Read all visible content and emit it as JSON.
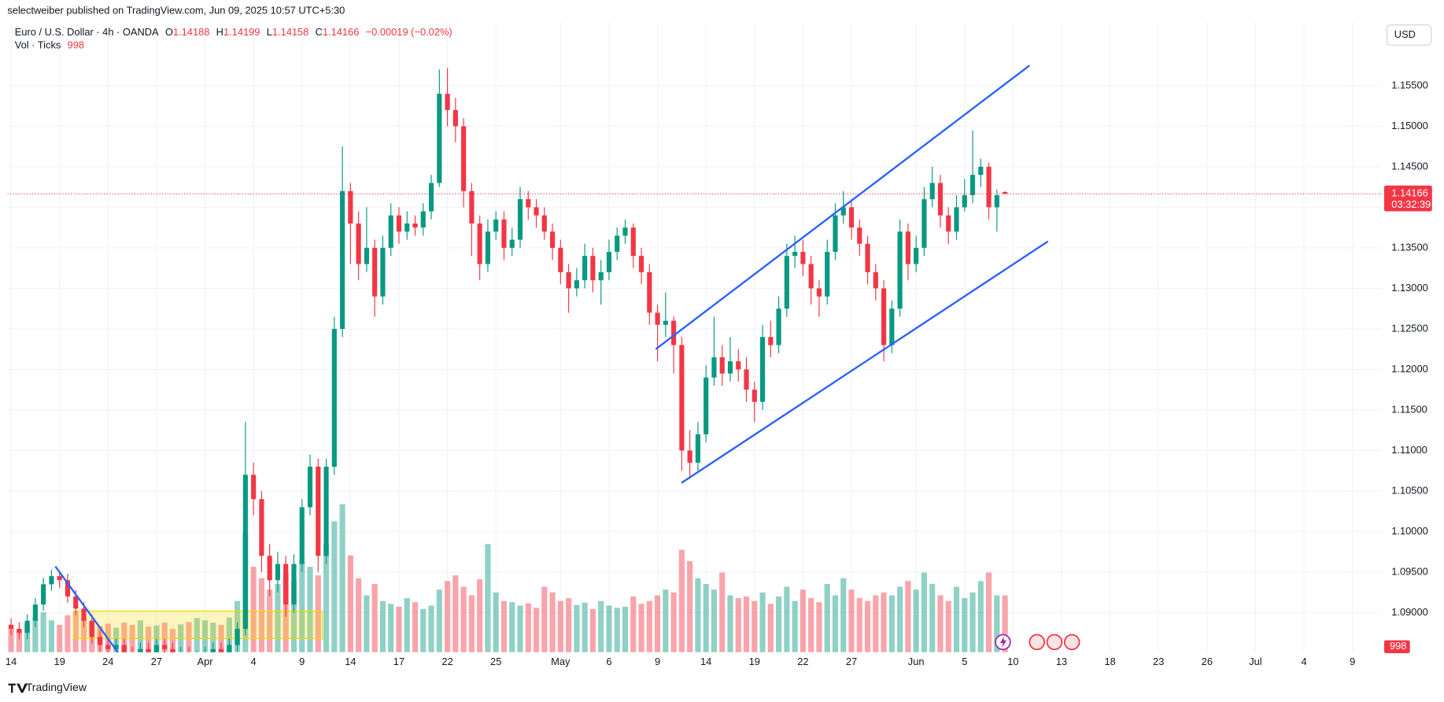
{
  "header": {
    "published": "selectweiber published on TradingView.com, Jun 09, 2025 10:57 UTC+5:30",
    "symbol": "Euro / U.S. Dollar · 4h · OANDA",
    "ohlc_labels": [
      "O",
      "H",
      "L",
      "C"
    ],
    "change": "−0.00019 (−0.02%)",
    "vol_label": "Vol · Ticks",
    "countdown": "03:32:39",
    "currency": "USD",
    "brand": "TradingView"
  },
  "chart_data": {
    "type": "candlestick",
    "up_color": "#089981",
    "down_color": "#f23645",
    "line_color": "#2962ff",
    "zone_color": "#f5d800",
    "xlim": [
      -0.23,
      84.79
    ],
    "ylim": [
      1.08511,
      1.16239
    ],
    "volume_lim": [
      0,
      11000
    ],
    "xticks": [
      {
        "value": 0,
        "label": "14"
      },
      {
        "value": 3,
        "label": "19"
      },
      {
        "value": 6,
        "label": "24"
      },
      {
        "value": 9,
        "label": "27"
      },
      {
        "value": 12,
        "label": "Apr"
      },
      {
        "value": 15,
        "label": "4"
      },
      {
        "value": 18,
        "label": "9"
      },
      {
        "value": 21,
        "label": "14"
      },
      {
        "value": 24,
        "label": "17"
      },
      {
        "value": 27,
        "label": "22"
      },
      {
        "value": 30,
        "label": "25"
      },
      {
        "value": 34,
        "label": "May"
      },
      {
        "value": 37,
        "label": "6"
      },
      {
        "value": 40,
        "label": "9"
      },
      {
        "value": 43,
        "label": "14"
      },
      {
        "value": 46,
        "label": "19"
      },
      {
        "value": 49,
        "label": "22"
      },
      {
        "value": 52,
        "label": "27"
      },
      {
        "value": 56,
        "label": "Jun"
      },
      {
        "value": 59,
        "label": "5"
      },
      {
        "value": 62,
        "label": "10"
      },
      {
        "value": 65,
        "label": "13"
      },
      {
        "value": 68,
        "label": "18"
      },
      {
        "value": 71,
        "label": "23"
      },
      {
        "value": 74,
        "label": "26"
      },
      {
        "value": 77,
        "label": "Jul"
      },
      {
        "value": 80,
        "label": "4"
      },
      {
        "value": 83,
        "label": "9"
      }
    ],
    "yticks": [
      {
        "value": 1.09,
        "label": "1.09000"
      },
      {
        "value": 1.095,
        "label": "1.09500"
      },
      {
        "value": 1.1,
        "label": "1.10000"
      },
      {
        "value": 1.105,
        "label": "1.10500"
      },
      {
        "value": 1.11,
        "label": "1.11000"
      },
      {
        "value": 1.115,
        "label": "1.11500"
      },
      {
        "value": 1.12,
        "label": "1.12000"
      },
      {
        "value": 1.125,
        "label": "1.12500"
      },
      {
        "value": 1.13,
        "label": "1.13000"
      },
      {
        "value": 1.135,
        "label": "1.13500"
      },
      {
        "value": 1.14,
        "label": "1.14000"
      },
      {
        "value": 1.145,
        "label": "1.14500"
      },
      {
        "value": 1.15,
        "label": "1.15000"
      },
      {
        "value": 1.155,
        "label": "1.15500"
      }
    ],
    "x": [
      0,
      0.5,
      1,
      1.5,
      2,
      2.5,
      3,
      3.5,
      4,
      4.5,
      5,
      5.5,
      6,
      6.5,
      7,
      7.5,
      8,
      8.5,
      9,
      9.5,
      10,
      10.5,
      11,
      11.5,
      12,
      12.5,
      13,
      13.5,
      14,
      14.5,
      15,
      15.5,
      16,
      16.5,
      17,
      17.5,
      18,
      18.5,
      19,
      19.5,
      20,
      20.5,
      21,
      21.5,
      22,
      22.5,
      23,
      23.5,
      24,
      24.5,
      25,
      25.5,
      26,
      26.5,
      27,
      27.5,
      28,
      28.5,
      29,
      29.5,
      30,
      30.5,
      31,
      31.5,
      32,
      32.5,
      33,
      33.5,
      34,
      34.5,
      35,
      35.5,
      36,
      36.5,
      37,
      37.5,
      38,
      38.5,
      39,
      39.5,
      40,
      40.5,
      41,
      41.5,
      42,
      42.5,
      43,
      43.5,
      44,
      44.5,
      45,
      45.5,
      46,
      46.5,
      47,
      47.5,
      48,
      48.5,
      49,
      49.5,
      50,
      50.5,
      51,
      51.5,
      52,
      52.5,
      53,
      53.5,
      54,
      54.5,
      55,
      55.5,
      56,
      56.5,
      57,
      57.5,
      58,
      58.5,
      59,
      59.5,
      60,
      60.5,
      61,
      61.5
    ],
    "ohlc": [
      [
        1.0885,
        1.0893,
        1.0872,
        1.088
      ],
      [
        1.088,
        1.0888,
        1.0867,
        1.0875
      ],
      [
        1.0875,
        1.0898,
        1.0867,
        1.089
      ],
      [
        1.089,
        1.0918,
        1.0882,
        1.091
      ],
      [
        1.091,
        1.0943,
        1.0902,
        1.0935
      ],
      [
        1.0935,
        1.0953,
        1.0927,
        1.0945
      ],
      [
        1.0945,
        1.095,
        1.093,
        1.094
      ],
      [
        1.094,
        1.0948,
        1.0912,
        1.092
      ],
      [
        1.092,
        1.0928,
        1.0897,
        1.0905
      ],
      [
        1.0905,
        1.0913,
        1.0882,
        1.089
      ],
      [
        1.089,
        1.0898,
        1.0862,
        1.087
      ],
      [
        1.087,
        1.0878,
        1.0852,
        1.086
      ],
      [
        1.086,
        1.0868,
        1.0847,
        1.0855
      ],
      [
        1.0855,
        1.0868,
        1.0847,
        1.086
      ],
      [
        1.086,
        1.0868,
        1.0842,
        1.085
      ],
      [
        1.085,
        1.0858,
        1.0837,
        1.0845
      ],
      [
        1.0845,
        1.0863,
        1.0837,
        1.0855
      ],
      [
        1.0855,
        1.0863,
        1.0842,
        1.085
      ],
      [
        1.085,
        1.0868,
        1.0842,
        1.086
      ],
      [
        1.086,
        1.0868,
        1.0847,
        1.0855
      ],
      [
        1.0855,
        1.0863,
        1.0837,
        1.0845
      ],
      [
        1.0845,
        1.0858,
        1.0837,
        1.085
      ],
      [
        1.085,
        1.0858,
        1.0832,
        1.084
      ],
      [
        1.084,
        1.0853,
        1.0832,
        1.0845
      ],
      [
        1.0845,
        1.0858,
        1.0837,
        1.085
      ],
      [
        1.085,
        1.0863,
        1.0842,
        1.0855
      ],
      [
        1.0855,
        1.0863,
        1.0837,
        1.0845
      ],
      [
        1.0845,
        1.0868,
        1.0837,
        1.086
      ],
      [
        1.086,
        1.0888,
        1.0852,
        1.088
      ],
      [
        1.088,
        1.1135,
        1.0872,
        1.107
      ],
      [
        1.107,
        1.1085,
        1.102,
        1.104
      ],
      [
        1.104,
        1.105,
        1.095,
        1.097
      ],
      [
        1.097,
        1.0985,
        1.092,
        1.094
      ],
      [
        1.094,
        1.0975,
        1.0925,
        1.096
      ],
      [
        1.096,
        1.097,
        1.0895,
        1.091
      ],
      [
        1.091,
        1.0972,
        1.09,
        1.096
      ],
      [
        1.096,
        1.104,
        1.095,
        1.103
      ],
      [
        1.103,
        1.1095,
        1.102,
        1.108
      ],
      [
        1.108,
        1.109,
        1.095,
        1.097
      ],
      [
        1.097,
        1.109,
        1.096,
        1.108
      ],
      [
        1.108,
        1.1265,
        1.107,
        1.125
      ],
      [
        1.125,
        1.1475,
        1.124,
        1.142
      ],
      [
        1.142,
        1.143,
        1.133,
        1.138
      ],
      [
        1.138,
        1.1395,
        1.131,
        1.133
      ],
      [
        1.133,
        1.14,
        1.132,
        1.135
      ],
      [
        1.135,
        1.136,
        1.1265,
        1.129
      ],
      [
        1.129,
        1.1365,
        1.128,
        1.135
      ],
      [
        1.135,
        1.1405,
        1.134,
        1.139
      ],
      [
        1.139,
        1.14,
        1.1355,
        1.137
      ],
      [
        1.137,
        1.1395,
        1.136,
        1.138
      ],
      [
        1.138,
        1.139,
        1.1365,
        1.1375
      ],
      [
        1.1375,
        1.1405,
        1.1365,
        1.1395
      ],
      [
        1.1395,
        1.144,
        1.1385,
        1.143
      ],
      [
        1.143,
        1.157,
        1.1425,
        1.154
      ],
      [
        1.154,
        1.1572,
        1.15,
        1.152
      ],
      [
        1.152,
        1.1535,
        1.148,
        1.15
      ],
      [
        1.15,
        1.151,
        1.14,
        1.142
      ],
      [
        1.142,
        1.143,
        1.134,
        1.138
      ],
      [
        1.138,
        1.139,
        1.131,
        1.133
      ],
      [
        1.133,
        1.1385,
        1.132,
        1.137
      ],
      [
        1.137,
        1.1395,
        1.136,
        1.1385
      ],
      [
        1.1385,
        1.1395,
        1.1335,
        1.135
      ],
      [
        1.135,
        1.1375,
        1.134,
        1.136
      ],
      [
        1.136,
        1.1425,
        1.135,
        1.141
      ],
      [
        1.141,
        1.142,
        1.1385,
        1.14
      ],
      [
        1.14,
        1.141,
        1.1375,
        1.139
      ],
      [
        1.139,
        1.14,
        1.136,
        1.137
      ],
      [
        1.137,
        1.138,
        1.1335,
        1.135
      ],
      [
        1.135,
        1.136,
        1.1305,
        1.132
      ],
      [
        1.132,
        1.133,
        1.127,
        1.13
      ],
      [
        1.13,
        1.1325,
        1.129,
        1.131
      ],
      [
        1.131,
        1.1355,
        1.13,
        1.134
      ],
      [
        1.134,
        1.135,
        1.1295,
        1.131
      ],
      [
        1.131,
        1.1335,
        1.128,
        1.132
      ],
      [
        1.132,
        1.136,
        1.131,
        1.1345
      ],
      [
        1.1345,
        1.1375,
        1.1335,
        1.1365
      ],
      [
        1.1365,
        1.1385,
        1.1355,
        1.1375
      ],
      [
        1.1375,
        1.138,
        1.1325,
        1.134
      ],
      [
        1.134,
        1.135,
        1.1305,
        1.132
      ],
      [
        1.132,
        1.133,
        1.1255,
        1.127
      ],
      [
        1.127,
        1.128,
        1.121,
        1.1255
      ],
      [
        1.1255,
        1.1295,
        1.124,
        1.126
      ],
      [
        1.126,
        1.1265,
        1.1195,
        1.123
      ],
      [
        1.123,
        1.124,
        1.1075,
        1.11
      ],
      [
        1.11,
        1.1125,
        1.1065,
        1.1085
      ],
      [
        1.1085,
        1.1135,
        1.1075,
        1.112
      ],
      [
        1.112,
        1.1205,
        1.111,
        1.119
      ],
      [
        1.119,
        1.1265,
        1.118,
        1.1215
      ],
      [
        1.1215,
        1.123,
        1.118,
        1.1195
      ],
      [
        1.1195,
        1.124,
        1.1185,
        1.121
      ],
      [
        1.121,
        1.1225,
        1.1185,
        1.12
      ],
      [
        1.12,
        1.1215,
        1.116,
        1.1175
      ],
      [
        1.1175,
        1.1185,
        1.1135,
        1.116
      ],
      [
        1.116,
        1.1255,
        1.115,
        1.124
      ],
      [
        1.124,
        1.126,
        1.1215,
        1.123
      ],
      [
        1.123,
        1.129,
        1.122,
        1.1275
      ],
      [
        1.1275,
        1.1355,
        1.1265,
        1.134
      ],
      [
        1.134,
        1.1365,
        1.1325,
        1.1345
      ],
      [
        1.1345,
        1.136,
        1.1315,
        1.133
      ],
      [
        1.133,
        1.134,
        1.128,
        1.13
      ],
      [
        1.13,
        1.131,
        1.1265,
        1.129
      ],
      [
        1.129,
        1.136,
        1.128,
        1.1345
      ],
      [
        1.1345,
        1.1405,
        1.1335,
        1.139
      ],
      [
        1.139,
        1.142,
        1.138,
        1.14
      ],
      [
        1.14,
        1.141,
        1.136,
        1.1375
      ],
      [
        1.1375,
        1.1385,
        1.134,
        1.1355
      ],
      [
        1.1355,
        1.1365,
        1.1305,
        1.132
      ],
      [
        1.132,
        1.133,
        1.1285,
        1.13
      ],
      [
        1.13,
        1.131,
        1.121,
        1.123
      ],
      [
        1.123,
        1.1285,
        1.122,
        1.1275
      ],
      [
        1.1275,
        1.1385,
        1.1265,
        1.137
      ],
      [
        1.137,
        1.138,
        1.131,
        1.133
      ],
      [
        1.133,
        1.1365,
        1.132,
        1.135
      ],
      [
        1.135,
        1.1425,
        1.134,
        1.141
      ],
      [
        1.141,
        1.145,
        1.14,
        1.143
      ],
      [
        1.143,
        1.144,
        1.1375,
        1.139
      ],
      [
        1.139,
        1.14,
        1.1355,
        1.137
      ],
      [
        1.137,
        1.1415,
        1.136,
        1.14
      ],
      [
        1.14,
        1.1435,
        1.1395,
        1.1415
      ],
      [
        1.1415,
        1.1495,
        1.1405,
        1.144
      ],
      [
        1.144,
        1.146,
        1.1425,
        1.145
      ],
      [
        1.145,
        1.1455,
        1.1385,
        1.14
      ],
      [
        1.14,
        1.1422,
        1.137,
        1.1415
      ],
      [
        1.14188,
        1.14199,
        1.14158,
        1.14166
      ]
    ],
    "volume": [
      420,
      380,
      510,
      620,
      700,
      560,
      480,
      650,
      720,
      600,
      540,
      460,
      500,
      430,
      520,
      480,
      560,
      450,
      470,
      520,
      410,
      490,
      530,
      600,
      560,
      520,
      480,
      610,
      900,
      2100,
      1500,
      1300,
      1100,
      1200,
      1400,
      1250,
      1600,
      1500,
      1350,
      1900,
      2300,
      2600,
      1700,
      1300,
      1000,
      1200,
      900,
      850,
      800,
      950,
      880,
      760,
      820,
      1100,
      1250,
      1350,
      1150,
      1000,
      1280,
      1900,
      1050,
      900,
      880,
      820,
      860,
      780,
      1150,
      1050,
      900,
      950,
      830,
      870,
      760,
      900,
      820,
      780,
      800,
      980,
      850,
      900,
      1000,
      1100,
      1050,
      1800,
      1600,
      1300,
      1200,
      1100,
      1400,
      1000,
      950,
      980,
      900,
      1050,
      850,
      980,
      1150,
      900,
      1100,
      950,
      880,
      1200,
      1000,
      1300,
      1100,
      950,
      900,
      1000,
      1050,
      1000,
      1150,
      1250,
      1100,
      1400,
      1200,
      1000,
      900,
      1150,
      950,
      1050,
      1250,
      1400,
      1000,
      998
    ],
    "trend_lines": [
      {
        "x": [
          39.89,
          63.02
        ],
        "y": [
          1.1225,
          1.1575
        ]
      },
      {
        "x": [
          41.48,
          64.16
        ],
        "y": [
          1.106,
          1.1358
        ]
      },
      {
        "x": [
          2.74,
          6.61
        ],
        "y": [
          1.0957,
          1.0851
        ]
      }
    ],
    "zone": {
      "x": [
        3.87,
        19.26
      ],
      "y": [
        1.0868,
        1.0902
      ]
    }
  }
}
